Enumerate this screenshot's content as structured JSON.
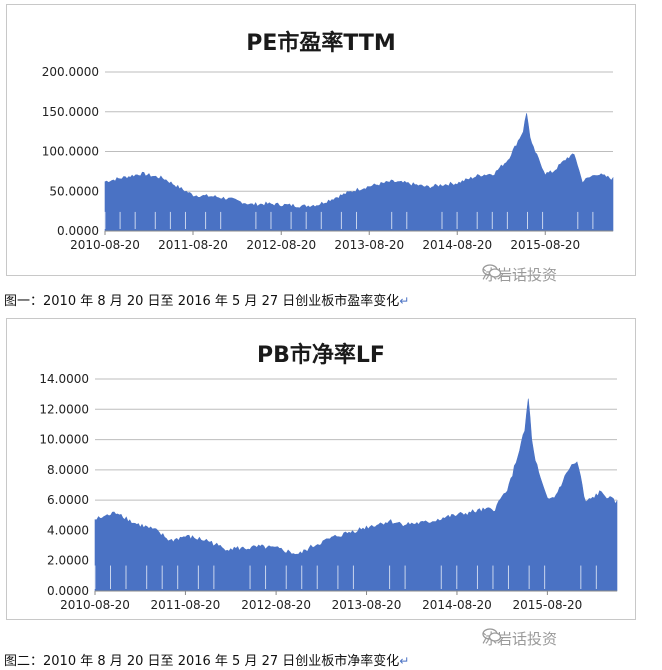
{
  "chart_data": [
    {
      "type": "area",
      "title": "PE市盈率TTM",
      "y_ticks": [
        "0.0000",
        "50.0000",
        "100.0000",
        "150.0000",
        "200.0000"
      ],
      "ylim": [
        0,
        200
      ],
      "x_ticks": [
        "2010-08-20",
        "2011-08-20",
        "2012-08-20",
        "2013-08-20",
        "2014-08-20",
        "2015-08-20"
      ],
      "x_range": [
        "2010-08-20",
        "2016-05-27"
      ],
      "grid": "horizontal",
      "color": "#4a72c4",
      "x": [
        "2010-08-20",
        "2010-11-20",
        "2011-01-20",
        "2011-04-20",
        "2011-06-20",
        "2011-08-20",
        "2011-11-20",
        "2012-01-20",
        "2012-04-20",
        "2012-06-20",
        "2012-08-20",
        "2012-11-20",
        "2013-01-20",
        "2013-04-20",
        "2013-06-20",
        "2013-08-20",
        "2013-11-20",
        "2014-01-20",
        "2014-04-20",
        "2014-06-20",
        "2014-08-20",
        "2014-11-20",
        "2015-01-20",
        "2015-03-20",
        "2015-05-20",
        "2015-06-05",
        "2015-06-20",
        "2015-07-20",
        "2015-08-20",
        "2015-09-20",
        "2015-11-20",
        "2015-12-20",
        "2016-01-20",
        "2016-03-20",
        "2016-05-27"
      ],
      "values": [
        62,
        68,
        72,
        66,
        55,
        45,
        43,
        40,
        33,
        34,
        33,
        31,
        33,
        44,
        51,
        56,
        62,
        60,
        55,
        58,
        60,
        70,
        72,
        90,
        125,
        150,
        112,
        92,
        72,
        74,
        92,
        96,
        62,
        72,
        65
      ]
    },
    {
      "type": "area",
      "title": "PB市净率LF",
      "y_ticks": [
        "0.0000",
        "2.0000",
        "4.0000",
        "6.0000",
        "8.0000",
        "10.0000",
        "12.0000",
        "14.0000"
      ],
      "ylim": [
        0,
        14
      ],
      "x_ticks": [
        "2010-08-20",
        "2011-08-20",
        "2012-08-20",
        "2013-08-20",
        "2014-08-20",
        "2015-08-20"
      ],
      "x_range": [
        "2010-08-20",
        "2016-05-27"
      ],
      "grid": "horizontal",
      "color": "#4a72c4",
      "x": [
        "2010-08-20",
        "2010-11-20",
        "2011-01-20",
        "2011-04-20",
        "2011-06-20",
        "2011-08-20",
        "2011-11-20",
        "2012-01-20",
        "2012-04-20",
        "2012-06-20",
        "2012-08-20",
        "2012-11-20",
        "2013-01-20",
        "2013-04-20",
        "2013-06-20",
        "2013-08-20",
        "2013-11-20",
        "2014-01-20",
        "2014-04-20",
        "2014-06-20",
        "2014-08-20",
        "2014-11-20",
        "2015-01-20",
        "2015-03-20",
        "2015-05-20",
        "2015-06-05",
        "2015-06-20",
        "2015-07-20",
        "2015-08-20",
        "2015-09-20",
        "2015-11-20",
        "2015-12-20",
        "2016-01-20",
        "2016-03-20",
        "2016-05-27"
      ],
      "values": [
        4.7,
        5.2,
        4.5,
        4.0,
        3.3,
        3.6,
        3.3,
        2.8,
        2.8,
        2.9,
        2.8,
        2.4,
        3.0,
        3.6,
        3.9,
        4.2,
        4.6,
        4.4,
        4.5,
        4.8,
        5.0,
        5.3,
        5.4,
        7.0,
        10.5,
        12.8,
        9.5,
        7.5,
        6.0,
        6.2,
        8.2,
        8.5,
        5.8,
        6.5,
        5.8
      ]
    }
  ],
  "captions": {
    "fig1": "图一：2010 年 8 月 20 日至 2016 年 5 月 27 日创业板市盈率变化",
    "fig2": "图二：2010 年 8 月 20 日至 2016 年 5 月 27 日创业板市净率变化",
    "mark": "↵"
  },
  "watermark": "冰岩话投资"
}
